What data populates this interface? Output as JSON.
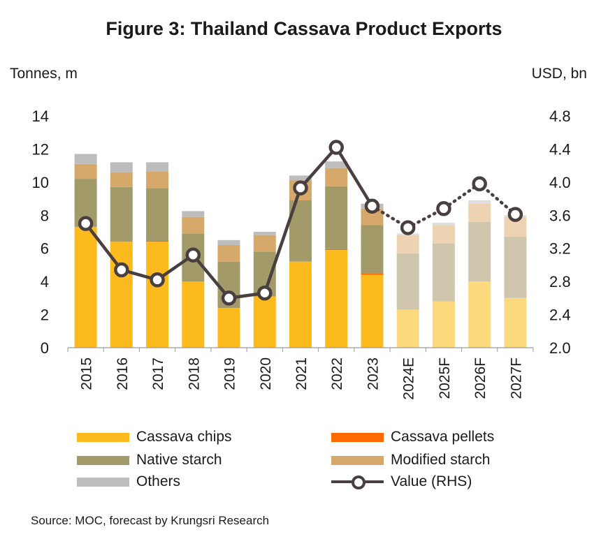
{
  "title": "Figure 3: Thailand Cassava Product Exports",
  "left_unit": "Tonnes, m",
  "right_unit": "USD, bn",
  "source": "Source: MOC, forecast by Krungsri Research",
  "colors": {
    "cassava_chips": "#FDBA1F",
    "cassava_pellets": "#FF6A00",
    "native_starch": "#A39A6A",
    "modified_starch": "#D6A96B",
    "others": "#BDBDBD",
    "cassava_chips_forecast": "#FDD97E",
    "native_starch_forecast": "#CFC6AD",
    "modified_starch_forecast": "#EDD3B2",
    "others_forecast": "#DEDEDE",
    "value_line": "#4A3F3F"
  },
  "legend": [
    {
      "name": "Cassava chips",
      "kind": "bar",
      "color": "#FDBA1F"
    },
    {
      "name": "Cassava pellets",
      "kind": "bar",
      "color": "#FF6A00"
    },
    {
      "name": "Native starch",
      "kind": "bar",
      "color": "#A39A6A"
    },
    {
      "name": "Modified starch",
      "kind": "bar",
      "color": "#D6A96B"
    },
    {
      "name": "Others",
      "kind": "bar",
      "color": "#BDBDBD"
    },
    {
      "name": "Value (RHS)",
      "kind": "line",
      "color": "#4A3F3F"
    }
  ],
  "chart_data": {
    "type": "bar",
    "stacked": true,
    "title": "Figure 3: Thailand Cassava Product Exports",
    "ylabel": "Tonnes, m",
    "y2label": "USD, bn",
    "ylim": [
      0,
      14
    ],
    "y2lim": [
      2.0,
      4.8
    ],
    "yticks": [
      "0",
      "2",
      "4",
      "6",
      "8",
      "10",
      "12",
      "14"
    ],
    "y2ticks": [
      "2.0",
      "2.4",
      "2.8",
      "3.2",
      "3.6",
      "4.0",
      "4.4",
      "4.8"
    ],
    "categories": [
      "2015",
      "2016",
      "2017",
      "2018",
      "2019",
      "2020",
      "2021",
      "2022",
      "2023",
      "2024E",
      "2025F",
      "2026F",
      "2027F"
    ],
    "forecast_start_index": 9,
    "series": [
      {
        "name": "Cassava chips",
        "values": [
          7.3,
          6.4,
          6.4,
          4.0,
          2.4,
          3.1,
          5.2,
          5.9,
          4.4,
          2.3,
          2.8,
          4.0,
          3.0
        ]
      },
      {
        "name": "Cassava pellets",
        "values": [
          0.0,
          0.0,
          0.05,
          0.0,
          0.0,
          0.0,
          0.0,
          0.05,
          0.1,
          0.0,
          0.0,
          0.0,
          0.0
        ]
      },
      {
        "name": "Native starch",
        "values": [
          2.9,
          3.3,
          3.2,
          2.9,
          2.8,
          2.7,
          3.7,
          3.8,
          2.9,
          3.4,
          3.5,
          3.6,
          3.7
        ]
      },
      {
        "name": "Modified starch",
        "values": [
          0.9,
          0.9,
          1.0,
          1.0,
          1.0,
          1.0,
          1.2,
          1.1,
          1.0,
          1.1,
          1.1,
          1.1,
          1.2
        ]
      },
      {
        "name": "Others",
        "values": [
          0.6,
          0.6,
          0.55,
          0.35,
          0.3,
          0.2,
          0.3,
          0.4,
          0.3,
          0.1,
          0.15,
          0.2,
          0.1
        ]
      }
    ],
    "line_series": {
      "name": "Value (RHS)",
      "axis": "right",
      "values": [
        3.5,
        2.94,
        2.82,
        3.12,
        2.6,
        2.66,
        3.93,
        4.42,
        3.71,
        3.45,
        3.68,
        3.98,
        3.61
      ]
    }
  }
}
